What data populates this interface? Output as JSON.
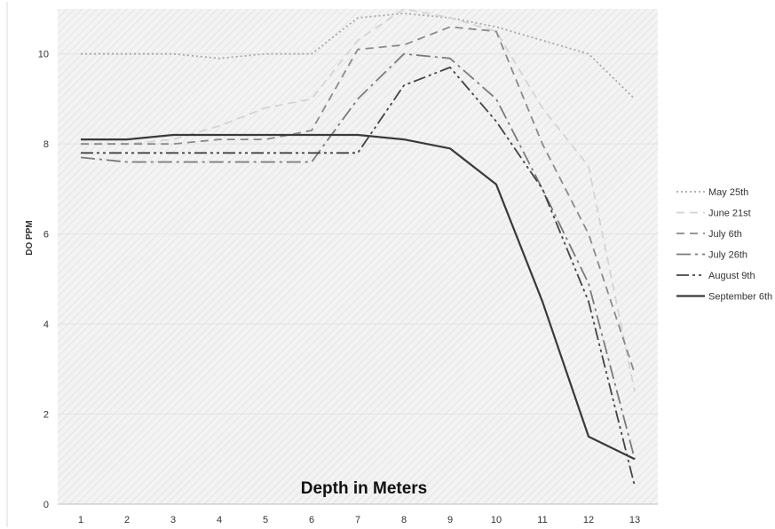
{
  "chart_data": {
    "type": "line",
    "title": "",
    "xlabel": "Depth in Meters",
    "ylabel": "DO PPM",
    "categories": [
      "1",
      "2",
      "3",
      "4",
      "5",
      "6",
      "7",
      "8",
      "9",
      "10",
      "11",
      "12",
      "13"
    ],
    "ylim": [
      0,
      11
    ],
    "yticks": [
      "0",
      "2",
      "4",
      "6",
      "8",
      "10"
    ],
    "grid": "horizontal",
    "legend": "right",
    "series": [
      {
        "name": "May 25th",
        "color": "#a8a8a8",
        "dash": "dotted",
        "values": [
          10.0,
          10.0,
          10.0,
          9.9,
          10.0,
          10.0,
          10.8,
          10.9,
          10.8,
          10.6,
          10.3,
          10.0,
          9.0
        ]
      },
      {
        "name": "June 21st",
        "color": "#d4d4d4",
        "dash": "dashed",
        "values": [
          8.0,
          8.0,
          8.1,
          8.4,
          8.8,
          9.0,
          10.3,
          11.0,
          10.8,
          10.5,
          8.8,
          7.5,
          2.5
        ]
      },
      {
        "name": "July 6th",
        "color": "#8a8a8a",
        "dash": "dashed",
        "values": [
          8.0,
          8.0,
          8.0,
          8.1,
          8.1,
          8.3,
          10.1,
          10.2,
          10.6,
          10.5,
          8.0,
          6.0,
          2.9
        ]
      },
      {
        "name": "July 26th",
        "color": "#7a7a7a",
        "dash": "dash-dot",
        "values": [
          7.7,
          7.6,
          7.6,
          7.6,
          7.6,
          7.6,
          9.0,
          10.0,
          9.9,
          9.0,
          7.0,
          4.9,
          1.0
        ]
      },
      {
        "name": "August 9th",
        "color": "#444444",
        "dash": "dash-dot-dot",
        "values": [
          7.8,
          7.8,
          7.8,
          7.8,
          7.8,
          7.8,
          7.8,
          9.3,
          9.7,
          8.5,
          7.0,
          4.5,
          0.4
        ]
      },
      {
        "name": "September 6th",
        "color": "#3a3a3a",
        "dash": "solid",
        "values": [
          8.1,
          8.1,
          8.2,
          8.2,
          8.2,
          8.2,
          8.2,
          8.1,
          7.9,
          7.1,
          4.5,
          1.5,
          1.0
        ]
      }
    ]
  }
}
